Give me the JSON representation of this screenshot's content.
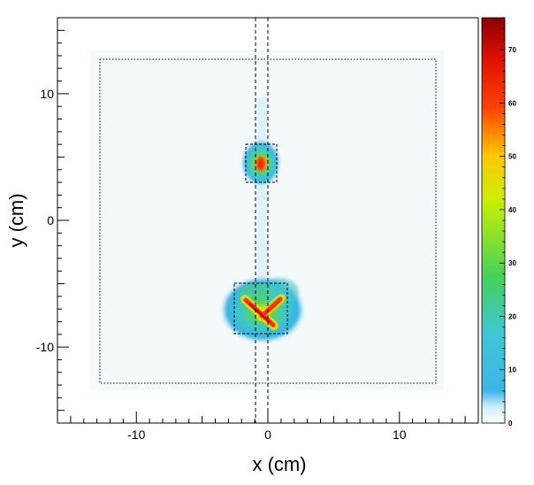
{
  "chart_data": {
    "type": "heatmap",
    "title": "",
    "xlabel": "x (cm)",
    "ylabel": "y (cm)",
    "xlim": [
      -16,
      16
    ],
    "ylim": [
      -16,
      16
    ],
    "x_ticks": [
      -10,
      0,
      10
    ],
    "y_ticks": [
      -10,
      0,
      10
    ],
    "x_tick_labels": [
      "-10",
      "0",
      "10"
    ],
    "y_tick_labels": [
      "-10",
      "0",
      "10"
    ],
    "colorbar": {
      "min": 0,
      "max": 76,
      "ticks": [
        0,
        10,
        20,
        30,
        40,
        50,
        60,
        70
      ],
      "tick_labels": [
        "0",
        "10",
        "20",
        "30",
        "40",
        "50",
        "60",
        "70"
      ]
    },
    "colormap": [
      "#ffffff",
      "#3db5e6",
      "#3dd0c0",
      "#44d15a",
      "#c8f000",
      "#ffc800",
      "#ff4000",
      "#8b0000"
    ],
    "sources": [
      {
        "name": "upper source",
        "x": -0.4,
        "y": 4.4,
        "peak": 55
      },
      {
        "name": "lower source (crossed rods)",
        "x": -0.5,
        "y": -6.9,
        "peak": 75
      }
    ],
    "annotations": {
      "detector_outline": {
        "x": [
          -12.8,
          12.8
        ],
        "y": [
          -12.8,
          12.8
        ],
        "style": "dotted"
      },
      "vertical_lines_x": [
        -0.8,
        0.2
      ],
      "box_upper": {
        "x": [
          -1.5,
          1.0
        ],
        "y": [
          3.0,
          6.0
        ],
        "style": "dashed"
      },
      "box_lower": {
        "x": [
          -2.5,
          1.8
        ],
        "y": [
          -9.0,
          -5.0
        ],
        "style": "dashed"
      }
    }
  }
}
